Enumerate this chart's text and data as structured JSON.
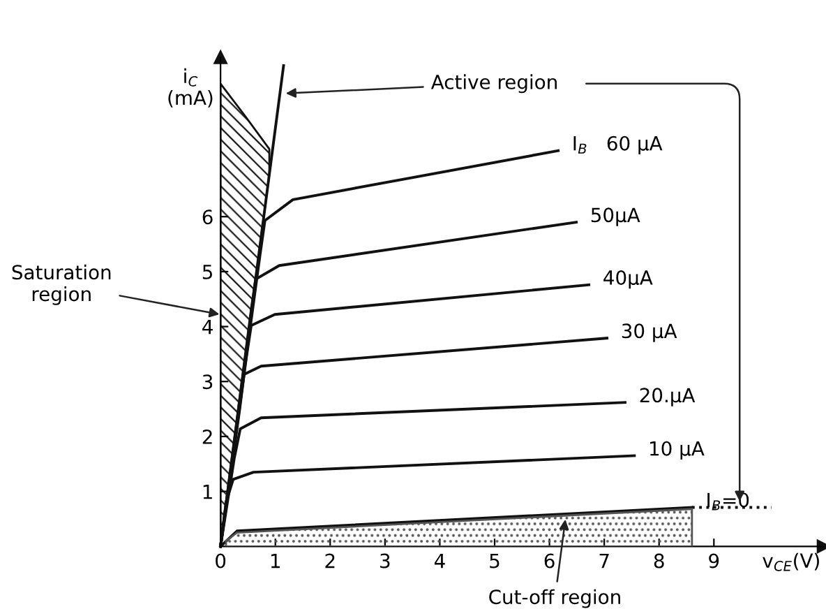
{
  "chart_data": {
    "type": "line",
    "xlabel": "v$_{CE}$(V)",
    "ylabel": "i$_{C}$\n(mA)",
    "xlim": [
      0,
      11
    ],
    "ylim": [
      0,
      8.9
    ],
    "xticks": [
      0,
      1,
      2,
      3,
      4,
      5,
      6,
      7,
      8,
      9
    ],
    "yticks": [
      1,
      2,
      3,
      4,
      5,
      6
    ],
    "series": [
      {
        "type": "area",
        "color": "#555555",
        "x": [
          0.1,
          0.3,
          8.6
        ],
        "values": [
          0.1,
          0.25,
          0.68
        ]
      },
      {
        "type": "line",
        "color": "#111111",
        "x": [
          0,
          0.45,
          0.89,
          1.15
        ],
        "values": [
          0,
          3.42,
          6.77,
          8.75
        ],
        "lower": [
          0,
          3.42,
          6.77,
          null
        ],
        "upper": [
          8.42,
          7.83,
          7.23,
          null
        ]
      },
      {
        "name": "I$_{B}$=0",
        "color": "#111111",
        "x": [
          0,
          0.3,
          8.6
        ],
        "values": [
          0,
          0.28,
          0.71
        ]
      },
      {
        "color": "#111111",
        "line_style": "dotted",
        "x": [
          8.6,
          10.05
        ],
        "values": [
          0.71,
          0.71
        ]
      },
      {
        "name": "10 μA",
        "color": "#111111",
        "x": [
          0,
          0.1,
          0.23,
          0.6,
          7.55
        ],
        "values": [
          0,
          0.8,
          1.22,
          1.35,
          1.65
        ]
      },
      {
        "name": "20.μA",
        "color": "#111111",
        "x": [
          0,
          0.25,
          0.36,
          0.74,
          7.38
        ],
        "values": [
          0,
          1.6,
          2.14,
          2.34,
          2.62
        ]
      },
      {
        "name": "30 μA",
        "color": "#111111",
        "x": [
          0,
          0.35,
          0.43,
          0.74,
          7.05
        ],
        "values": [
          0,
          2.5,
          3.13,
          3.28,
          3.79
        ]
      },
      {
        "name": "40μA",
        "color": "#111111",
        "x": [
          0,
          0.48,
          0.56,
          0.99,
          6.72
        ],
        "values": [
          0,
          3.5,
          4.02,
          4.22,
          4.76
        ]
      },
      {
        "name": "50μA",
        "color": "#111111",
        "x": [
          0,
          0.56,
          0.64,
          1.07,
          6.49
        ],
        "values": [
          0,
          4.3,
          4.86,
          5.11,
          5.9
        ]
      },
      {
        "name": "I$_{B}$   60 μA",
        "color": "#111111",
        "x": [
          0,
          0.72,
          0.81,
          1.32,
          6.16
        ],
        "values": [
          0,
          5.3,
          5.93,
          6.31,
          7.2
        ]
      }
    ],
    "annotations": [
      {
        "text": "Active region",
        "x": 1.12,
        "y": 8.24
      },
      "Saturation region",
      {
        "text": "Cut-off region",
        "x": 6.3,
        "y": 0.56
      }
    ]
  }
}
